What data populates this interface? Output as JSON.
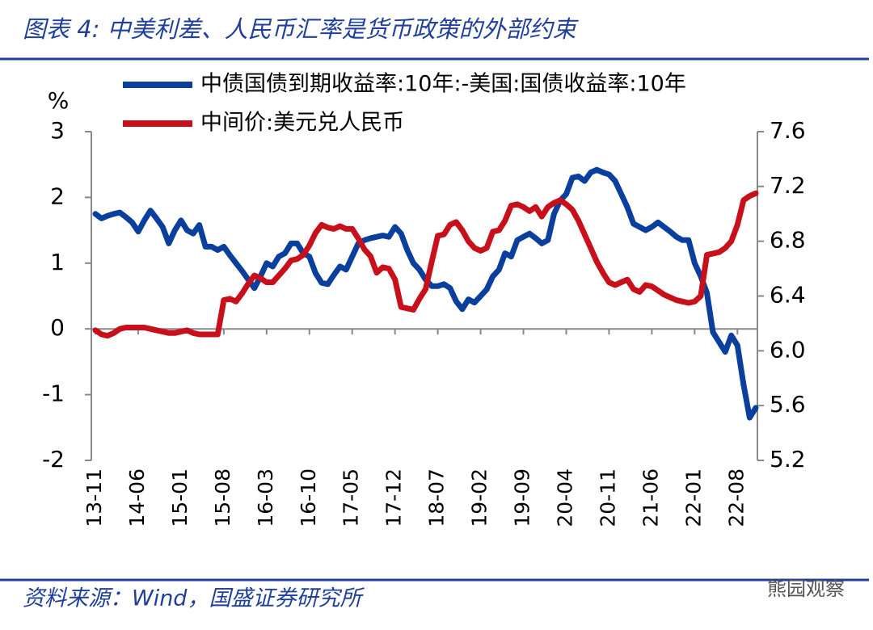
{
  "title": "图表 4:  中美利差、人民币汇率是货币政策的外部约束",
  "source": "资料来源：Wind，国盛证券研究所",
  "watermark": "熊园观察",
  "chart_data": {
    "type": "line",
    "y_label": "%",
    "categories": [
      "13-11",
      null,
      null,
      null,
      null,
      null,
      null,
      "14-06",
      null,
      null,
      null,
      null,
      null,
      null,
      "15-01",
      null,
      null,
      null,
      null,
      null,
      null,
      "15-08",
      null,
      null,
      null,
      null,
      null,
      null,
      "16-03",
      null,
      null,
      null,
      null,
      null,
      null,
      "16-10",
      null,
      null,
      null,
      null,
      null,
      null,
      "17-05",
      null,
      null,
      null,
      null,
      null,
      null,
      "17-12",
      null,
      null,
      null,
      null,
      null,
      null,
      "18-07",
      null,
      null,
      null,
      null,
      null,
      null,
      "19-02",
      null,
      null,
      null,
      null,
      null,
      null,
      "19-09",
      null,
      null,
      null,
      null,
      null,
      null,
      "20-04",
      null,
      null,
      null,
      null,
      null,
      null,
      "20-11",
      null,
      null,
      null,
      null,
      null,
      null,
      "21-06",
      null,
      null,
      null,
      null,
      null,
      null,
      "22-01",
      null,
      null,
      null,
      null,
      null,
      null,
      "22-08",
      null,
      null,
      null
    ],
    "series": [
      {
        "name": "中债国债到期收益率:10年:-美国:国债收益率:10年",
        "color": "#0b3f9e",
        "axis": "y",
        "values": [
          1.75,
          1.68,
          1.72,
          1.75,
          1.77,
          1.7,
          1.62,
          1.48,
          1.65,
          1.8,
          1.68,
          1.55,
          1.3,
          1.5,
          1.65,
          1.5,
          1.45,
          1.58,
          1.25,
          1.25,
          1.2,
          1.25,
          1.12,
          1.0,
          0.88,
          0.75,
          0.62,
          0.8,
          1.0,
          0.95,
          1.1,
          1.15,
          1.3,
          1.3,
          1.15,
          1.1,
          0.85,
          0.7,
          0.68,
          0.82,
          0.95,
          0.9,
          1.1,
          1.3,
          1.35,
          1.38,
          1.4,
          1.42,
          1.4,
          1.55,
          1.45,
          1.2,
          1.0,
          0.9,
          0.75,
          0.65,
          0.65,
          0.68,
          0.62,
          0.42,
          0.3,
          0.45,
          0.4,
          0.5,
          0.6,
          0.8,
          0.9,
          1.15,
          1.1,
          1.35,
          1.4,
          1.45,
          1.38,
          1.3,
          1.35,
          1.75,
          1.95,
          2.05,
          2.3,
          2.32,
          2.25,
          2.38,
          2.42,
          2.38,
          2.35,
          2.25,
          2.05,
          1.85,
          1.6,
          1.55,
          1.5,
          1.55,
          1.62,
          1.55,
          1.48,
          1.4,
          1.35,
          1.35,
          1.0,
          0.8,
          0.55,
          -0.05,
          -0.2,
          -0.35,
          -0.1,
          -0.25,
          -0.85,
          -1.35,
          -1.2
        ]
      },
      {
        "name": "中间价:美元兑人民币",
        "color": "#c8101a",
        "axis": "y2",
        "values": [
          6.15,
          6.12,
          6.11,
          6.13,
          6.16,
          6.17,
          6.17,
          6.17,
          6.17,
          6.16,
          6.15,
          6.14,
          6.13,
          6.13,
          6.14,
          6.15,
          6.13,
          6.12,
          6.12,
          6.12,
          6.12,
          6.37,
          6.38,
          6.36,
          6.42,
          6.49,
          6.55,
          6.53,
          6.5,
          6.5,
          6.55,
          6.6,
          6.66,
          6.67,
          6.7,
          6.77,
          6.86,
          6.92,
          6.9,
          6.89,
          6.91,
          6.89,
          6.89,
          6.82,
          6.74,
          6.69,
          6.57,
          6.61,
          6.6,
          6.52,
          6.32,
          6.31,
          6.3,
          6.38,
          6.45,
          6.65,
          6.84,
          6.85,
          6.92,
          6.94,
          6.88,
          6.8,
          6.75,
          6.73,
          6.75,
          6.87,
          6.88,
          6.95,
          7.06,
          7.07,
          7.05,
          7.02,
          7.05,
          6.98,
          7.05,
          7.08,
          7.1,
          7.07,
          7.03,
          6.95,
          6.85,
          6.75,
          6.65,
          6.57,
          6.5,
          6.48,
          6.5,
          6.52,
          6.45,
          6.43,
          6.48,
          6.47,
          6.44,
          6.41,
          6.39,
          6.37,
          6.36,
          6.35,
          6.36,
          6.4,
          6.7,
          6.71,
          6.72,
          6.75,
          6.8,
          6.92,
          7.1,
          7.13,
          7.15
        ]
      }
    ],
    "ylim": [
      -2,
      3
    ],
    "yticks": [
      -2,
      -1,
      0,
      1,
      2,
      3
    ],
    "y2lim": [
      5.2,
      7.6
    ],
    "y2ticks": [
      5.2,
      5.6,
      {
        "value": 6,
        "label": "6.0"
      },
      6.4,
      6.8,
      7.2,
      7.6
    ],
    "legend": "top"
  }
}
